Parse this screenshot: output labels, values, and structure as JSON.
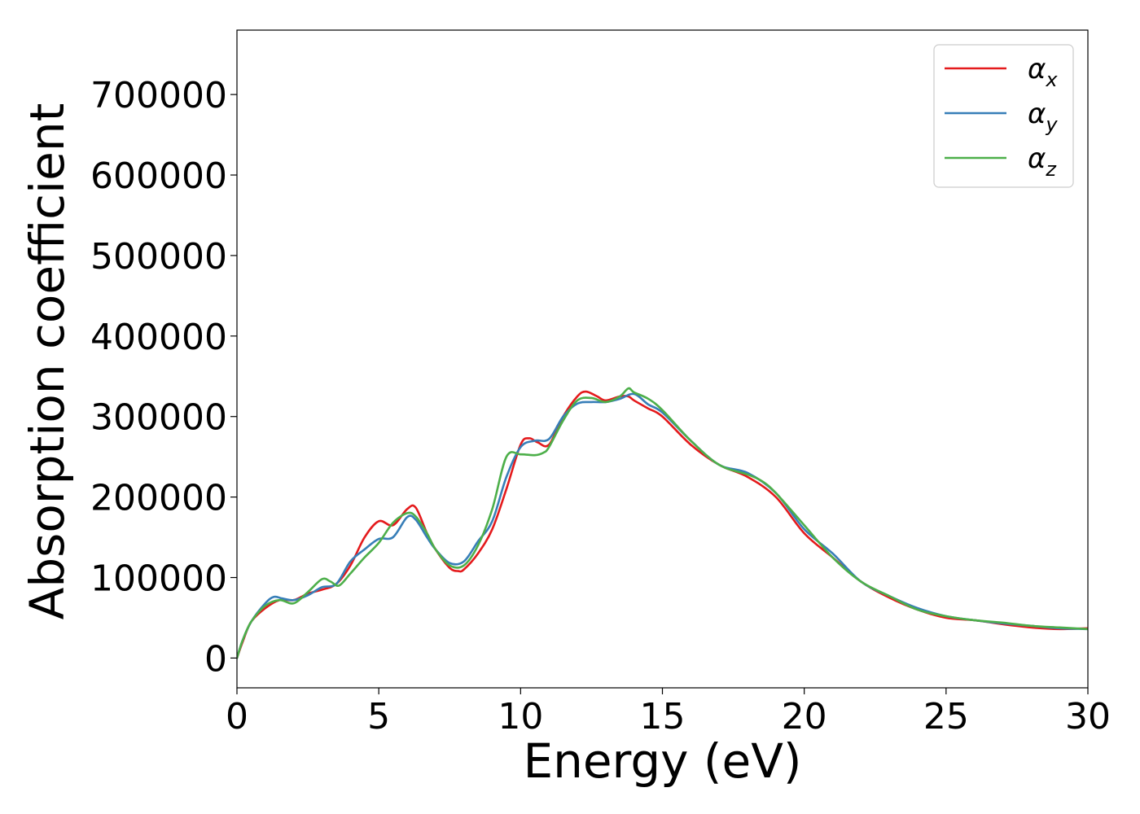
{
  "chart_data": {
    "type": "line",
    "xlabel": "Energy (eV)",
    "ylabel": "Absorption coefficient",
    "xlim": [
      0,
      30
    ],
    "ylim": [
      -37000,
      780000
    ],
    "xticks": [
      0,
      5,
      10,
      15,
      20,
      25,
      30
    ],
    "yticks": [
      0,
      100000,
      200000,
      300000,
      400000,
      500000,
      600000,
      700000
    ],
    "grid": false,
    "legend_position": "top-right",
    "series": [
      {
        "name": "α",
        "subscript": "x",
        "color": "#e41a1c",
        "x": [
          0,
          0.2,
          0.5,
          1.0,
          1.5,
          2.0,
          2.5,
          3.0,
          3.5,
          4.0,
          4.5,
          5.0,
          5.5,
          6.0,
          6.3,
          6.7,
          7.0,
          7.5,
          7.8,
          8.0,
          8.5,
          9.0,
          9.5,
          10.0,
          10.3,
          10.6,
          11.0,
          11.5,
          12.0,
          12.3,
          12.7,
          13.0,
          13.5,
          13.8,
          14.0,
          14.5,
          15.0,
          16.0,
          17.0,
          18.0,
          19.0,
          20.0,
          21.0,
          22.0,
          23.0,
          24.0,
          25.0,
          26.0,
          27.0,
          28.0,
          29.0,
          30.0
        ],
        "y": [
          0,
          20000,
          45000,
          62000,
          72000,
          72000,
          80000,
          85000,
          92000,
          115000,
          150000,
          170000,
          165000,
          185000,
          187000,
          155000,
          135000,
          112000,
          108000,
          110000,
          130000,
          160000,
          210000,
          265000,
          273000,
          268000,
          265000,
          300000,
          325000,
          331000,
          325000,
          320000,
          325000,
          325000,
          320000,
          310000,
          300000,
          265000,
          240000,
          225000,
          200000,
          155000,
          125000,
          95000,
          75000,
          60000,
          50000,
          47000,
          42000,
          38000,
          36000,
          37000
        ]
      },
      {
        "name": "α",
        "subscript": "y",
        "color": "#377eb8",
        "x": [
          0,
          0.2,
          0.5,
          1.0,
          1.3,
          1.6,
          2.0,
          2.5,
          3.0,
          3.5,
          4.0,
          4.5,
          5.0,
          5.5,
          6.0,
          6.3,
          6.7,
          7.0,
          7.5,
          8.0,
          8.5,
          9.0,
          9.5,
          10.0,
          10.5,
          11.0,
          11.5,
          12.0,
          12.5,
          13.0,
          13.5,
          14.0,
          14.5,
          15.0,
          16.0,
          17.0,
          18.0,
          19.0,
          20.0,
          21.0,
          22.0,
          23.0,
          24.0,
          25.0,
          26.0,
          27.0,
          28.0,
          29.0,
          30.0
        ],
        "y": [
          0,
          22000,
          45000,
          68000,
          76000,
          74000,
          72000,
          78000,
          88000,
          92000,
          120000,
          135000,
          148000,
          150000,
          175000,
          172000,
          150000,
          135000,
          118000,
          120000,
          145000,
          170000,
          225000,
          262000,
          270000,
          272000,
          300000,
          316000,
          318000,
          318000,
          322000,
          328000,
          315000,
          305000,
          270000,
          240000,
          230000,
          205000,
          160000,
          130000,
          95000,
          77000,
          62000,
          52000,
          47000,
          43000,
          40000,
          37000,
          36000
        ]
      },
      {
        "name": "α",
        "subscript": "z",
        "color": "#4daf4a",
        "x": [
          0,
          0.2,
          0.5,
          1.0,
          1.5,
          2.0,
          2.5,
          3.0,
          3.3,
          3.6,
          4.0,
          4.5,
          5.0,
          5.5,
          6.0,
          6.3,
          6.7,
          7.0,
          7.5,
          8.0,
          8.5,
          9.0,
          9.5,
          10.0,
          10.5,
          10.8,
          11.0,
          11.5,
          12.0,
          12.5,
          13.0,
          13.5,
          13.8,
          14.0,
          14.5,
          15.0,
          16.0,
          17.0,
          18.0,
          18.5,
          19.0,
          20.0,
          21.0,
          22.0,
          23.0,
          24.0,
          25.0,
          26.0,
          27.0,
          28.0,
          29.0,
          30.0
        ],
        "y": [
          0,
          22000,
          45000,
          65000,
          72000,
          68000,
          82000,
          98000,
          95000,
          90000,
          105000,
          125000,
          143000,
          168000,
          180000,
          176000,
          155000,
          135000,
          115000,
          115000,
          140000,
          185000,
          250000,
          253000,
          252000,
          255000,
          262000,
          295000,
          320000,
          323000,
          318000,
          325000,
          335000,
          330000,
          322000,
          308000,
          270000,
          240000,
          228000,
          220000,
          205000,
          165000,
          125000,
          95000,
          77000,
          60000,
          52000,
          47000,
          44000,
          40000,
          38000,
          36000
        ]
      }
    ]
  }
}
